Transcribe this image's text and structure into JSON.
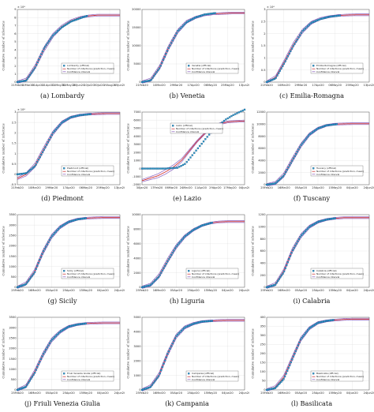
{
  "figure": {
    "legend_labels": {
      "official_suffix": "(official)",
      "prediction": "Number of infections (prediction, mean)",
      "ci": "Confidence interval"
    },
    "ylabel": "Cumulative number of infections"
  },
  "colors": {
    "official_marker": "#2aa0c8",
    "official_marker_edge": "#1a3a7a",
    "prediction": "#cc2222",
    "ci": "#8a5fc0"
  },
  "chart_data": [
    {
      "type": "line",
      "panel": "(a)",
      "caption": "(a)  Lombardy",
      "region": "Lombardy",
      "x_ticks": [
        "21Feb20",
        "12Mar20",
        "01Apr20",
        "21Apr20",
        "11May20",
        "31May20",
        "20Jun20",
        "10Jul20",
        "30Jul20",
        "19Aug20",
        "15Jun20"
      ],
      "ylim": [
        0,
        9
      ],
      "y_ticks": [
        0,
        1,
        2,
        3,
        4,
        5,
        6,
        7,
        8,
        9
      ],
      "y_multiplier": "× 10⁴",
      "grid": true,
      "legend_position": "lower-right",
      "x_range_days": [
        0,
        115
      ],
      "official_end_day": 78,
      "official": {
        "x_days": [
          0,
          10,
          20,
          30,
          40,
          50,
          60,
          70,
          78
        ],
        "y": [
          0.0,
          0.2,
          1.8,
          4.2,
          5.8,
          6.8,
          7.5,
          7.9,
          8.2
        ]
      },
      "prediction": {
        "x_days": [
          0,
          10,
          20,
          30,
          40,
          50,
          60,
          70,
          80,
          90,
          100,
          115
        ],
        "y": [
          0.0,
          0.3,
          1.9,
          4.1,
          5.8,
          6.9,
          7.6,
          8.0,
          8.2,
          8.3,
          8.3,
          8.3
        ]
      }
    },
    {
      "type": "line",
      "panel": "(b)",
      "caption": "(b)  Venetia",
      "region": "Venetia",
      "x_ticks": [
        "21Feb20",
        "10Mar20",
        "29Mar20",
        "17Apr20",
        "06May20",
        "25May20",
        "13Jun20"
      ],
      "ylim": [
        0,
        20000
      ],
      "y_ticks": [
        0,
        5000,
        10000,
        15000,
        20000
      ],
      "grid": true,
      "legend_position": "lower-right",
      "x_range_days": [
        0,
        115
      ],
      "official_end_day": 82,
      "official": {
        "x_days": [
          0,
          10,
          20,
          30,
          40,
          50,
          60,
          70,
          82
        ],
        "y": [
          0,
          500,
          4000,
          9500,
          14000,
          16500,
          17800,
          18600,
          19000
        ]
      },
      "prediction": {
        "x_days": [
          0,
          10,
          20,
          30,
          40,
          50,
          60,
          70,
          80,
          90,
          100,
          115
        ],
        "y": [
          0,
          700,
          4200,
          9600,
          14000,
          16600,
          17800,
          18500,
          18800,
          18900,
          19000,
          19000
        ]
      }
    },
    {
      "type": "line",
      "panel": "(c)",
      "caption": "(c)  Emilia-Romagna",
      "region": "Emilia-Romagna",
      "x_ticks": [
        "21Feb20",
        "10Mar20",
        "29Mar20",
        "17Apr20",
        "06May20",
        "25May20",
        "13Jun20"
      ],
      "ylim": [
        0,
        3
      ],
      "y_ticks": [
        0,
        0.5,
        1,
        1.5,
        2,
        2.5,
        3
      ],
      "y_multiplier": "× 10⁴",
      "grid": true,
      "legend_position": "lower-right",
      "x_range_days": [
        0,
        115
      ],
      "official_end_day": 82,
      "official": {
        "x_days": [
          0,
          10,
          20,
          30,
          40,
          50,
          60,
          70,
          82
        ],
        "y": [
          0.0,
          0.15,
          0.8,
          1.5,
          2.1,
          2.45,
          2.6,
          2.7,
          2.75
        ]
      },
      "prediction": {
        "x_days": [
          0,
          10,
          20,
          30,
          40,
          50,
          60,
          70,
          80,
          90,
          100,
          115
        ],
        "y": [
          0.0,
          0.2,
          0.85,
          1.55,
          2.1,
          2.45,
          2.62,
          2.7,
          2.75,
          2.77,
          2.78,
          2.78
        ]
      }
    },
    {
      "type": "line",
      "panel": "(d)",
      "caption": "(d)  Piedmont",
      "region": "Piedmont",
      "x_ticks": [
        "21Feb20",
        "10Mar20",
        "29Mar20",
        "17Apr20",
        "06May20",
        "25May20",
        "13Jun20"
      ],
      "ylim": [
        -0.5,
        3
      ],
      "y_ticks": [
        -0.5,
        0,
        0.5,
        1,
        1.5,
        2,
        2.5,
        3
      ],
      "y_multiplier": "× 10⁴",
      "grid": true,
      "legend_position": "lower-right",
      "x_range_days": [
        0,
        115
      ],
      "official_end_day": 82,
      "official": {
        "x_days": [
          0,
          10,
          20,
          30,
          40,
          50,
          60,
          70,
          82
        ],
        "y": [
          0.0,
          0.05,
          0.4,
          1.2,
          2.0,
          2.5,
          2.75,
          2.85,
          2.9
        ]
      },
      "prediction": {
        "x_days": [
          0,
          10,
          20,
          30,
          40,
          50,
          60,
          70,
          80,
          90,
          100,
          115
        ],
        "y": [
          -0.2,
          0.0,
          0.45,
          1.25,
          2.0,
          2.5,
          2.75,
          2.85,
          2.9,
          2.92,
          2.93,
          2.93
        ]
      }
    },
    {
      "type": "line",
      "panel": "(e)",
      "caption": "(e)  Lazio",
      "region": "Lazio",
      "x_ticks": [
        "30Jan20",
        "17Feb20",
        "06Mar20",
        "24Mar20",
        "11Apr20",
        "29Apr20",
        "17May20",
        "04Jun20"
      ],
      "ylim": [
        -2000,
        7000
      ],
      "y_ticks": [
        -2000,
        -1000,
        0,
        1000,
        2000,
        3000,
        4000,
        5000,
        6000,
        7000
      ],
      "grid": true,
      "legend_position": "lower-center",
      "x_range_days": [
        0,
        130
      ],
      "official_end_day": 130,
      "official": {
        "x_days": [
          0,
          30,
          45,
          55,
          65,
          75,
          85,
          95,
          105,
          115,
          130
        ],
        "y": [
          0,
          0,
          100,
          600,
          1800,
          3000,
          4200,
          5200,
          6000,
          6600,
          7300
        ]
      },
      "prediction": {
        "x_days": [
          0,
          20,
          30,
          40,
          50,
          60,
          70,
          80,
          90,
          100,
          110,
          130
        ],
        "y": [
          -1500,
          -900,
          -400,
          200,
          1000,
          2200,
          3400,
          4400,
          5200,
          5600,
          5800,
          5900
        ]
      }
    },
    {
      "type": "line",
      "panel": "(f)",
      "caption": "(f)  Tuscany",
      "region": "Tuscany",
      "x_ticks": [
        "25Feb20",
        "16Mar20",
        "05Apr20",
        "25Apr20",
        "15May20",
        "04Jun20",
        "24Jun20"
      ],
      "ylim": [
        0,
        12000
      ],
      "y_ticks": [
        0,
        2000,
        4000,
        6000,
        8000,
        10000,
        12000
      ],
      "grid": true,
      "legend_position": "lower-right",
      "x_range_days": [
        0,
        120
      ],
      "official_end_day": 82,
      "official": {
        "x_days": [
          0,
          10,
          20,
          30,
          40,
          50,
          60,
          70,
          82
        ],
        "y": [
          0,
          200,
          1500,
          4000,
          6500,
          8300,
          9300,
          9800,
          10000
        ]
      },
      "prediction": {
        "x_days": [
          0,
          10,
          20,
          30,
          40,
          50,
          60,
          70,
          80,
          90,
          100,
          120
        ],
        "y": [
          0,
          250,
          1600,
          4100,
          6500,
          8300,
          9300,
          9800,
          10000,
          10050,
          10080,
          10080
        ]
      }
    },
    {
      "type": "line",
      "panel": "(g)",
      "caption": "(g)  Sicily",
      "region": "Sicily",
      "x_ticks": [
        "25Feb20",
        "16Mar20",
        "05Apr20",
        "25Apr20",
        "15May20",
        "04Jun20",
        "24Jun20"
      ],
      "ylim": [
        0,
        3500
      ],
      "y_ticks": [
        0,
        500,
        1000,
        1500,
        2000,
        2500,
        3000,
        3500
      ],
      "grid": true,
      "legend_position": "lower-right",
      "x_range_days": [
        0,
        120
      ],
      "official_end_day": 80,
      "official": {
        "x_days": [
          0,
          10,
          20,
          30,
          40,
          50,
          60,
          70,
          80
        ],
        "y": [
          0,
          150,
          700,
          1700,
          2450,
          2900,
          3150,
          3270,
          3330
        ]
      },
      "prediction": {
        "x_days": [
          0,
          10,
          20,
          30,
          40,
          50,
          60,
          70,
          80,
          90,
          100,
          120
        ],
        "y": [
          0,
          180,
          750,
          1700,
          2450,
          2900,
          3150,
          3280,
          3330,
          3350,
          3360,
          3360
        ]
      }
    },
    {
      "type": "line",
      "panel": "(h)",
      "caption": "(h)  Liguria",
      "region": "Liguria",
      "x_ticks": [
        "25Feb20",
        "16Mar20",
        "05Apr20",
        "25Apr20",
        "15May20",
        "04Jun20",
        "24Jun20"
      ],
      "ylim": [
        0,
        10000
      ],
      "y_ticks": [
        0,
        2000,
        4000,
        6000,
        8000,
        10000
      ],
      "grid": true,
      "legend_position": "lower-right",
      "x_range_days": [
        0,
        120
      ],
      "official_end_day": 82,
      "official": {
        "x_days": [
          0,
          10,
          20,
          30,
          40,
          50,
          60,
          70,
          82
        ],
        "y": [
          0,
          300,
          1500,
          3600,
          5600,
          7000,
          7900,
          8500,
          8900
        ]
      },
      "prediction": {
        "x_days": [
          0,
          10,
          20,
          30,
          40,
          50,
          60,
          70,
          80,
          90,
          100,
          120
        ],
        "y": [
          0,
          350,
          1600,
          3700,
          5600,
          7000,
          7900,
          8500,
          8850,
          9000,
          9050,
          9050
        ]
      }
    },
    {
      "type": "line",
      "panel": "(i)",
      "caption": "(i)  Calabria",
      "region": "Calabria",
      "x_ticks": [
        "25Feb20",
        "16Mar20",
        "05Apr20",
        "25Apr20",
        "15May20",
        "04Jun20",
        "24Jun20"
      ],
      "ylim": [
        0,
        1200
      ],
      "y_ticks": [
        0,
        200,
        400,
        600,
        800,
        1000,
        1200
      ],
      "grid": true,
      "legend_position": "lower-right",
      "x_range_days": [
        0,
        120
      ],
      "official_end_day": 80,
      "official": {
        "x_days": [
          0,
          10,
          20,
          30,
          40,
          50,
          60,
          70,
          80
        ],
        "y": [
          0,
          40,
          250,
          600,
          850,
          1000,
          1080,
          1120,
          1140
        ]
      },
      "prediction": {
        "x_days": [
          0,
          10,
          20,
          30,
          40,
          50,
          60,
          70,
          80,
          90,
          100,
          120
        ],
        "y": [
          0,
          50,
          270,
          610,
          850,
          1000,
          1080,
          1120,
          1140,
          1150,
          1150,
          1150
        ]
      }
    },
    {
      "type": "line",
      "panel": "(j)",
      "caption": "(j)  Friuli Venezia Giulia",
      "region": "Friuli Venezia Giulia",
      "x_ticks": [
        "25Feb20",
        "16Mar20",
        "05Apr20",
        "25Apr20",
        "15May20",
        "04Jun20",
        "24Jun20"
      ],
      "ylim": [
        0,
        3500
      ],
      "y_ticks": [
        0,
        500,
        1000,
        1500,
        2000,
        2500,
        3000,
        3500
      ],
      "grid": true,
      "legend_position": "lower-right",
      "x_range_days": [
        0,
        120
      ],
      "official_end_day": 80,
      "official": {
        "x_days": [
          0,
          10,
          20,
          30,
          40,
          50,
          60,
          70,
          80
        ],
        "y": [
          0,
          150,
          800,
          1700,
          2400,
          2800,
          3050,
          3150,
          3200
        ]
      },
      "prediction": {
        "x_days": [
          0,
          10,
          20,
          30,
          40,
          50,
          60,
          70,
          80,
          90,
          100,
          120
        ],
        "y": [
          0,
          180,
          850,
          1700,
          2400,
          2800,
          3050,
          3150,
          3200,
          3220,
          3230,
          3230
        ]
      }
    },
    {
      "type": "line",
      "panel": "(k)",
      "caption": "(k)  Campania",
      "region": "Campania",
      "x_ticks": [
        "25Feb20",
        "16Mar20",
        "05Apr20",
        "25Apr20",
        "15May20",
        "04Jun20",
        "24Jun20"
      ],
      "ylim": [
        0,
        5000
      ],
      "y_ticks": [
        0,
        1000,
        2000,
        3000,
        4000,
        5000
      ],
      "grid": true,
      "legend_position": "lower-right",
      "x_range_days": [
        0,
        120
      ],
      "official_end_day": 82,
      "official": {
        "x_days": [
          0,
          10,
          20,
          30,
          40,
          50,
          60,
          70,
          82
        ],
        "y": [
          0,
          200,
          1000,
          2500,
          3700,
          4300,
          4550,
          4700,
          4750
        ]
      },
      "prediction": {
        "x_days": [
          0,
          10,
          20,
          30,
          40,
          50,
          60,
          70,
          80,
          90,
          100,
          120
        ],
        "y": [
          0,
          250,
          1050,
          2500,
          3700,
          4300,
          4560,
          4700,
          4750,
          4780,
          4790,
          4790
        ]
      }
    },
    {
      "type": "line",
      "panel": "(l)",
      "caption": "(l)  Basilicata",
      "region": "Basilicata",
      "x_ticks": [
        "25Feb20",
        "16Mar20",
        "05Apr20",
        "25Apr20",
        "15May20",
        "04Jun20",
        "24Jun20"
      ],
      "ylim": [
        0,
        400
      ],
      "y_ticks": [
        0,
        50,
        100,
        150,
        200,
        250,
        300,
        350,
        400
      ],
      "grid": true,
      "legend_position": "lower-right",
      "x_range_days": [
        0,
        120
      ],
      "official_end_day": 78,
      "official": {
        "x_days": [
          0,
          10,
          20,
          30,
          40,
          50,
          60,
          70,
          78
        ],
        "y": [
          0,
          10,
          60,
          170,
          280,
          340,
          370,
          380,
          385
        ]
      },
      "prediction": {
        "x_days": [
          0,
          10,
          20,
          30,
          40,
          50,
          60,
          70,
          80,
          90,
          100,
          120
        ],
        "y": [
          0,
          15,
          70,
          175,
          280,
          340,
          370,
          380,
          385,
          388,
          390,
          390
        ]
      }
    }
  ]
}
